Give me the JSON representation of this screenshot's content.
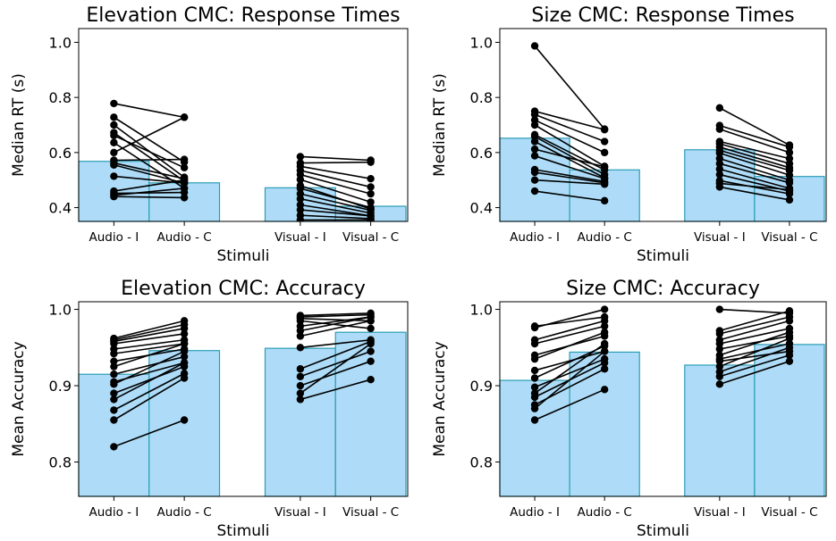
{
  "chart_data": [
    {
      "type": "bar",
      "title": "Elevation CMC: Response Times",
      "xlabel": "Stimuli",
      "ylabel": "Median RT (s)",
      "categories": [
        "Audio - I",
        "Audio - C",
        "Visual - I",
        "Visual - C"
      ],
      "values": [
        0.568,
        0.49,
        0.472,
        0.405
      ],
      "ylim": [
        0.35,
        1.05
      ],
      "yticks": [
        0.4,
        0.6,
        0.8,
        1.0
      ],
      "tick_labels": [
        "0.4",
        "0.6",
        "0.8",
        "1.0"
      ],
      "colors": {
        "bar": "#aedcf8",
        "bar_edge": "#2a9db5",
        "line": "#000000"
      },
      "pairs": [
        {
          "group": "audio",
          "pairs": [
            [
              0.778,
              0.728
            ],
            [
              0.728,
              0.565
            ],
            [
              0.7,
              0.51
            ],
            [
              0.672,
              0.496
            ],
            [
              0.662,
              0.545
            ],
            [
              0.636,
              0.47
            ],
            [
              0.6,
              0.728
            ],
            [
              0.572,
              0.575
            ],
            [
              0.562,
              0.505
            ],
            [
              0.555,
              0.489
            ],
            [
              0.514,
              0.489
            ],
            [
              0.46,
              0.5
            ],
            [
              0.452,
              0.455
            ],
            [
              0.445,
              0.47
            ],
            [
              0.44,
              0.436
            ]
          ]
        },
        {
          "group": "visual",
          "pairs": [
            [
              0.585,
              0.572
            ],
            [
              0.562,
              0.565
            ],
            [
              0.55,
              0.505
            ],
            [
              0.535,
              0.475
            ],
            [
              0.52,
              0.45
            ],
            [
              0.502,
              0.42
            ],
            [
              0.48,
              0.395
            ],
            [
              0.47,
              0.4
            ],
            [
              0.45,
              0.39
            ],
            [
              0.432,
              0.38
            ],
            [
              0.41,
              0.37
            ],
            [
              0.392,
              0.37
            ],
            [
              0.372,
              0.36
            ],
            [
              0.355,
              0.355
            ]
          ]
        }
      ]
    },
    {
      "type": "bar",
      "title": "Size CMC: Response Times",
      "xlabel": "Stimuli",
      "ylabel": "Median RT (s)",
      "categories": [
        "Audio - I",
        "Audio - C",
        "Visual - I",
        "Visual - C"
      ],
      "values": [
        0.652,
        0.537,
        0.61,
        0.513
      ],
      "ylim": [
        0.35,
        1.05
      ],
      "yticks": [
        0.4,
        0.6,
        0.8,
        1.0
      ],
      "tick_labels": [
        "0.4",
        "0.6",
        "0.8",
        "1.0"
      ],
      "colors": {
        "bar": "#aedcf8",
        "bar_edge": "#2a9db5",
        "line": "#000000"
      },
      "pairs": [
        {
          "group": "audio",
          "pairs": [
            [
              0.987,
              0.685
            ],
            [
              0.75,
              0.683
            ],
            [
              0.738,
              0.64
            ],
            [
              0.718,
              0.6
            ],
            [
              0.7,
              0.55
            ],
            [
              0.665,
              0.537
            ],
            [
              0.658,
              0.52
            ],
            [
              0.64,
              0.508
            ],
            [
              0.612,
              0.548
            ],
            [
              0.588,
              0.505
            ],
            [
              0.538,
              0.495
            ],
            [
              0.528,
              0.49
            ],
            [
              0.5,
              0.485
            ],
            [
              0.46,
              0.425
            ]
          ]
        },
        {
          "group": "visual",
          "pairs": [
            [
              0.762,
              0.627
            ],
            [
              0.698,
              0.62
            ],
            [
              0.685,
              0.6
            ],
            [
              0.64,
              0.578
            ],
            [
              0.632,
              0.56
            ],
            [
              0.62,
              0.545
            ],
            [
              0.608,
              0.535
            ],
            [
              0.598,
              0.518
            ],
            [
              0.578,
              0.5
            ],
            [
              0.56,
              0.49
            ],
            [
              0.54,
              0.47
            ],
            [
              0.52,
              0.46
            ],
            [
              0.498,
              0.45
            ],
            [
              0.488,
              0.465
            ],
            [
              0.475,
              0.428
            ]
          ]
        }
      ]
    },
    {
      "type": "bar",
      "title": "Elevation CMC: Accuracy",
      "xlabel": "Stimuli",
      "ylabel": "Mean Accuracy",
      "categories": [
        "Audio - I",
        "Audio - C",
        "Visual - I",
        "Visual - C"
      ],
      "values": [
        0.915,
        0.946,
        0.949,
        0.97
      ],
      "ylim": [
        0.755,
        1.01
      ],
      "yticks": [
        0.8,
        0.9,
        1.0
      ],
      "tick_labels": [
        "0.8",
        "0.9",
        "1.0"
      ],
      "colors": {
        "bar": "#aedcf8",
        "bar_edge": "#2a9db5",
        "line": "#000000"
      },
      "pairs": [
        {
          "group": "audio",
          "pairs": [
            [
              0.962,
              0.985
            ],
            [
              0.96,
              0.98
            ],
            [
              0.958,
              0.975
            ],
            [
              0.955,
              0.968
            ],
            [
              0.948,
              0.96
            ],
            [
              0.942,
              0.955
            ],
            [
              0.932,
              0.948
            ],
            [
              0.925,
              0.955
            ],
            [
              0.915,
              0.938
            ],
            [
              0.905,
              0.93
            ],
            [
              0.902,
              0.945
            ],
            [
              0.89,
              0.925
            ],
            [
              0.882,
              0.93
            ],
            [
              0.868,
              0.916
            ],
            [
              0.855,
              0.91
            ],
            [
              0.82,
              0.855
            ]
          ]
        },
        {
          "group": "visual",
          "pairs": [
            [
              0.992,
              0.995
            ],
            [
              0.99,
              0.993
            ],
            [
              0.988,
              0.985
            ],
            [
              0.985,
              0.975
            ],
            [
              0.978,
              0.99
            ],
            [
              0.972,
              0.99
            ],
            [
              0.965,
              0.985
            ],
            [
              0.95,
              0.96
            ],
            [
              0.922,
              0.958
            ],
            [
              0.912,
              0.945
            ],
            [
              0.9,
              0.932
            ],
            [
              0.89,
              0.955
            ],
            [
              0.882,
              0.908
            ]
          ]
        }
      ]
    },
    {
      "type": "bar",
      "title": "Size CMC: Accuracy",
      "xlabel": "Stimuli",
      "ylabel": "Mean Accuracy",
      "categories": [
        "Audio - I",
        "Audio - C",
        "Visual - I",
        "Visual - C"
      ],
      "values": [
        0.907,
        0.944,
        0.927,
        0.954
      ],
      "ylim": [
        0.755,
        1.01
      ],
      "yticks": [
        0.8,
        0.9,
        1.0
      ],
      "tick_labels": [
        "0.8",
        "0.9",
        "1.0"
      ],
      "colors": {
        "bar": "#aedcf8",
        "bar_edge": "#2a9db5",
        "line": "#000000"
      },
      "pairs": [
        {
          "group": "audio",
          "pairs": [
            [
              0.978,
              0.99
            ],
            [
              0.976,
              1.0
            ],
            [
              0.96,
              0.985
            ],
            [
              0.955,
              0.978
            ],
            [
              0.94,
              0.965
            ],
            [
              0.935,
              0.97
            ],
            [
              0.92,
              0.945
            ],
            [
              0.91,
              0.952
            ],
            [
              0.898,
              0.935
            ],
            [
              0.89,
              0.955
            ],
            [
              0.885,
              0.93
            ],
            [
              0.875,
              0.922
            ],
            [
              0.87,
              0.945
            ],
            [
              0.855,
              0.895
            ]
          ]
        },
        {
          "group": "visual",
          "pairs": [
            [
              1.0,
              0.995
            ],
            [
              0.972,
              0.998
            ],
            [
              0.968,
              0.99
            ],
            [
              0.96,
              0.985
            ],
            [
              0.955,
              0.975
            ],
            [
              0.948,
              0.965
            ],
            [
              0.94,
              0.97
            ],
            [
              0.935,
              0.955
            ],
            [
              0.932,
              0.945
            ],
            [
              0.925,
              0.962
            ],
            [
              0.918,
              0.95
            ],
            [
              0.912,
              0.94
            ],
            [
              0.902,
              0.932
            ]
          ]
        }
      ]
    }
  ]
}
